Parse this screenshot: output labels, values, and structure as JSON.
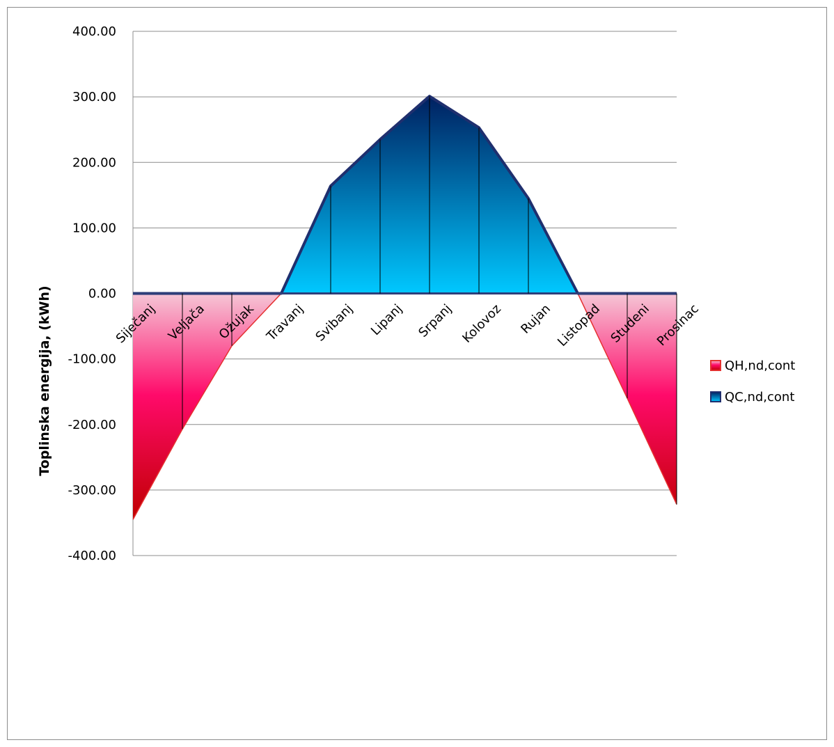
{
  "chart_data": {
    "type": "area",
    "ylabel": "Toplinska energija, (kWh)",
    "ylim": [
      -400,
      400
    ],
    "yticks": [
      400,
      300,
      200,
      100,
      0,
      -100,
      -200,
      -300,
      -400
    ],
    "ytick_labels": [
      "400.00",
      "300.00",
      "200.00",
      "100.00",
      "0.00",
      "-100.00",
      "-200.00",
      "-300.00",
      "-400.00"
    ],
    "categories": [
      "Siječanj",
      "Veljača",
      "Ožujak",
      "Travanj",
      "Svibanj",
      "Lipanj",
      "Srpanj",
      "Kolovoz",
      "Rujan",
      "Listopad",
      "Studeni",
      "Prosinac"
    ],
    "grid": true,
    "legend_position": "right",
    "series": [
      {
        "name": "QH,nd,cont",
        "values": [
          -345,
          -207,
          -80,
          0,
          0,
          0,
          0,
          0,
          0,
          0,
          -160,
          -322
        ],
        "color_top": "#f5c6d6",
        "color_mid": "#ff0a6a",
        "color_bottom": "#c00000",
        "line_color": "#e53030"
      },
      {
        "name": "QC,nd,cont",
        "values": [
          0,
          0,
          0,
          0,
          164,
          235,
          301,
          253,
          145,
          0,
          0,
          0
        ],
        "color_top": "#002060",
        "color_bottom": "#00c8ff",
        "line_color": "#1f2f6e"
      }
    ]
  }
}
